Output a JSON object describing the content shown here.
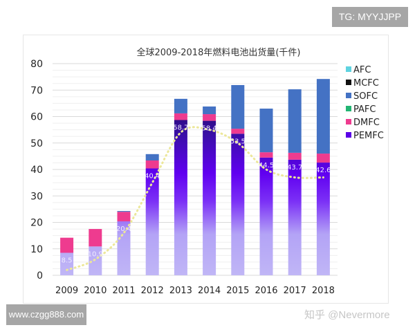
{
  "watermarks": {
    "top_right": "TG: MYYJJPP",
    "bottom_left": "www.czgg888.com",
    "overlay": "知乎 @Nevermore"
  },
  "chart_data": {
    "type": "bar",
    "stacked": true,
    "title": "全球2009-2018年燃料电池出货量(千件)",
    "xlabel": "",
    "ylabel": "",
    "ylim": [
      0,
      80
    ],
    "yticks": [
      "0",
      "10",
      "20",
      "30",
      "40",
      "50",
      "60",
      "70",
      "80"
    ],
    "grid": true,
    "legend": "right",
    "categories": [
      "2009",
      "2010",
      "2011",
      "2012",
      "2013",
      "2014",
      "2015",
      "2016",
      "2017",
      "2018"
    ],
    "series": [
      {
        "name": "PEMFC",
        "color": "#5a00e6",
        "values": [
          8.5,
          10.9,
          20.4,
          40.4,
          58.7,
          58.4,
          53.5,
          44.5,
          43.7,
          42.6
        ],
        "labels": [
          "8.5",
          "10.9",
          "20.4",
          "40.4",
          "58.7",
          "58.4",
          "53.5",
          "44.5",
          "43.7",
          "42.6"
        ]
      },
      {
        "name": "DMFC",
        "color": "#ee3b8f",
        "values": [
          5.7,
          6.6,
          3.6,
          3.0,
          2.5,
          2.5,
          1.9,
          2.0,
          2.6,
          3.4
        ]
      },
      {
        "name": "PAFC",
        "color": "#22b573",
        "values": [
          0,
          0,
          0,
          0,
          0,
          0,
          0,
          0,
          0,
          0
        ]
      },
      {
        "name": "SOFC",
        "color": "#4472c4",
        "values": [
          0,
          0,
          0.3,
          2.4,
          5.5,
          2.9,
          16.5,
          16.5,
          24.0,
          28.2
        ]
      },
      {
        "name": "MCFC",
        "color": "#111111",
        "values": [
          0,
          0,
          0,
          0,
          0,
          0,
          0,
          0,
          0,
          0
        ]
      },
      {
        "name": "AFC",
        "color": "#5fd3e0",
        "values": [
          0,
          0,
          0,
          0,
          0,
          0,
          0,
          0,
          0,
          0
        ]
      }
    ],
    "trendline": {
      "style": "dotted",
      "color": "#ece79a",
      "of": "PEMFC"
    }
  }
}
